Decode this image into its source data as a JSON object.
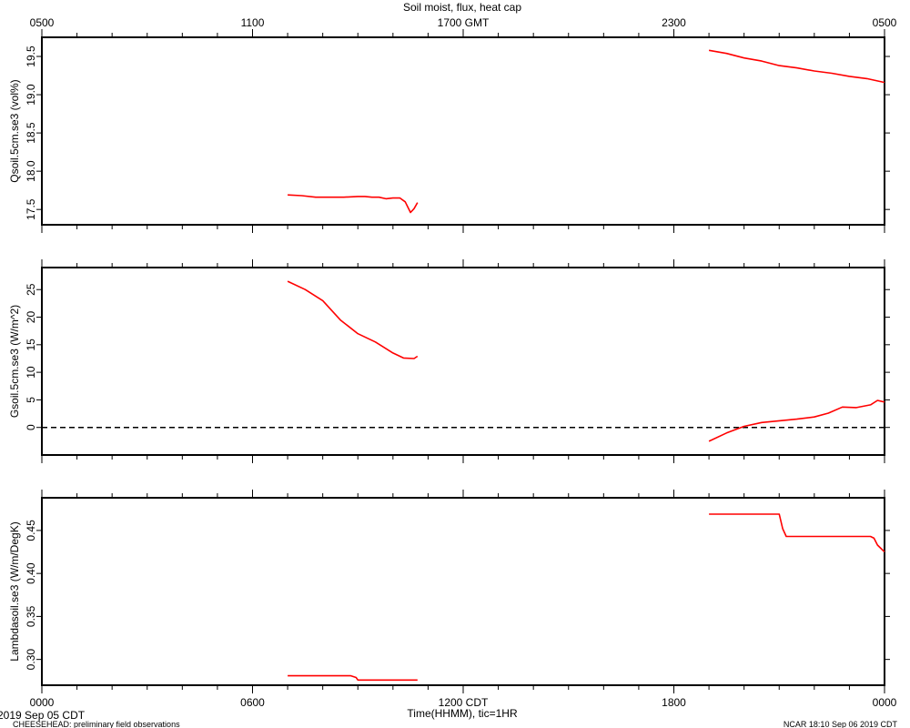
{
  "title": "Soil moist, flux, heat cap",
  "top_axis": {
    "tick_labels": [
      "0500",
      "1100",
      "1700 GMT",
      "2300",
      "0500"
    ],
    "tick_hours": [
      0,
      6,
      12,
      18,
      24
    ]
  },
  "bottom_axis": {
    "tick_labels": [
      "0000",
      "0600",
      "1200 CDT",
      "1800",
      "0000"
    ],
    "tick_hours": [
      0,
      6,
      12,
      18,
      24
    ],
    "xlabel": "Time(HHMM), tic=1HR",
    "date_label": "2019 Sep 05 CDT"
  },
  "footer": {
    "left": "CHEESEHEAD: preliminary field observations",
    "right": "NCAR 18:10 Sep 06 2019 CDT"
  },
  "chart_data": [
    {
      "type": "line",
      "ylabel": "Qsoil.5cm.se3 (vol%)",
      "ylim": [
        17.3,
        19.75
      ],
      "yticks": [
        17.5,
        18.0,
        18.5,
        19.0,
        19.5
      ],
      "ytick_labels": [
        "17.5",
        "18.0",
        "18.5",
        "19.0",
        "19.5"
      ],
      "xlim_hours": [
        0,
        24
      ],
      "zero_line": false,
      "color": "#ff0000",
      "segments": [
        [
          [
            7.0,
            17.69
          ],
          [
            7.4,
            17.68
          ],
          [
            7.8,
            17.66
          ],
          [
            8.2,
            17.66
          ],
          [
            8.6,
            17.66
          ],
          [
            9.0,
            17.67
          ],
          [
            9.2,
            17.67
          ],
          [
            9.4,
            17.66
          ],
          [
            9.6,
            17.66
          ],
          [
            9.8,
            17.64
          ],
          [
            10.0,
            17.65
          ],
          [
            10.2,
            17.65
          ],
          [
            10.35,
            17.6
          ],
          [
            10.5,
            17.46
          ],
          [
            10.6,
            17.51
          ],
          [
            10.7,
            17.59
          ]
        ],
        [
          [
            19.0,
            19.58
          ],
          [
            19.5,
            19.54
          ],
          [
            20.0,
            19.48
          ],
          [
            20.5,
            19.44
          ],
          [
            21.0,
            19.38
          ],
          [
            21.5,
            19.35
          ],
          [
            22.0,
            19.31
          ],
          [
            22.5,
            19.28
          ],
          [
            23.0,
            19.24
          ],
          [
            23.5,
            19.21
          ],
          [
            24.0,
            19.16
          ]
        ]
      ]
    },
    {
      "type": "line",
      "ylabel": "Gsoil.5cm.se3 (W/m^2)",
      "ylim": [
        -5,
        29
      ],
      "yticks": [
        0,
        5,
        10,
        15,
        20,
        25
      ],
      "ytick_labels": [
        "0",
        "5",
        "10",
        "15",
        "20",
        "25"
      ],
      "xlim_hours": [
        0,
        24
      ],
      "zero_line": true,
      "color": "#ff0000",
      "segments": [
        [
          [
            7.0,
            26.5
          ],
          [
            7.5,
            25.0
          ],
          [
            8.0,
            23.0
          ],
          [
            8.5,
            19.5
          ],
          [
            9.0,
            17.0
          ],
          [
            9.5,
            15.5
          ],
          [
            10.0,
            13.5
          ],
          [
            10.3,
            12.6
          ],
          [
            10.6,
            12.5
          ],
          [
            10.7,
            12.9
          ]
        ],
        [
          [
            19.0,
            -2.5
          ],
          [
            19.5,
            -1.0
          ],
          [
            20.0,
            0.2
          ],
          [
            20.5,
            0.9
          ],
          [
            21.0,
            1.2
          ],
          [
            21.5,
            1.5
          ],
          [
            22.0,
            1.9
          ],
          [
            22.4,
            2.6
          ],
          [
            22.8,
            3.7
          ],
          [
            23.2,
            3.6
          ],
          [
            23.6,
            4.1
          ],
          [
            23.8,
            4.9
          ],
          [
            24.0,
            4.6
          ]
        ]
      ]
    },
    {
      "type": "line",
      "ylabel": "Lambdasoil.se3 (W/m/DegK)",
      "ylim": [
        0.27,
        0.488
      ],
      "yticks": [
        0.3,
        0.35,
        0.4,
        0.45
      ],
      "ytick_labels": [
        "0.30",
        "0.35",
        "0.40",
        "0.45"
      ],
      "xlim_hours": [
        0,
        24
      ],
      "zero_line": false,
      "color": "#ff0000",
      "segments": [
        [
          [
            7.0,
            0.281
          ],
          [
            8.8,
            0.281
          ],
          [
            8.95,
            0.279
          ],
          [
            9.0,
            0.276
          ],
          [
            10.7,
            0.276
          ]
        ],
        [
          [
            19.0,
            0.469
          ],
          [
            21.0,
            0.469
          ],
          [
            21.1,
            0.452
          ],
          [
            21.2,
            0.443
          ],
          [
            23.6,
            0.443
          ],
          [
            23.7,
            0.441
          ],
          [
            23.8,
            0.433
          ],
          [
            24.0,
            0.425
          ]
        ]
      ]
    }
  ]
}
